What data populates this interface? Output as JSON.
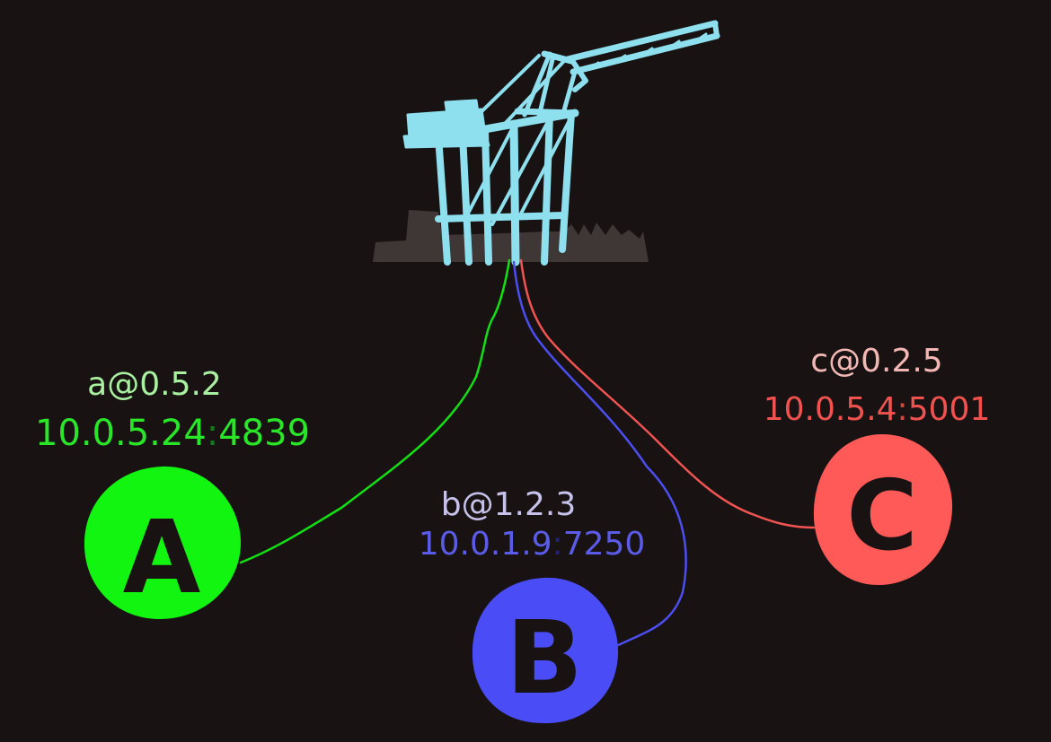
{
  "colors": {
    "background": "#181212",
    "crane": "#8ee0ee",
    "ground": "#3f3636",
    "node_a": "#11f511",
    "node_b": "#4a4cf6",
    "node_c": "#ff5a58",
    "letter": "#181212"
  },
  "hub": {
    "icon": "port-crane-icon"
  },
  "nodes": {
    "a": {
      "letter": "A",
      "name": "a@0.5.2",
      "ip": "10.0.5.24",
      "sep": ":",
      "port": "4839",
      "name_color": "#a9f0a0",
      "addr_color": "#29e629",
      "sep_color": "#0f7a1e"
    },
    "b": {
      "letter": "B",
      "name": "b@1.2.3",
      "ip": "10.0.1.9",
      "sep": ":",
      "port": "7250",
      "name_color": "#c7c2ea",
      "addr_color": "#5a5ce8",
      "sep_color": "#24237a"
    },
    "c": {
      "letter": "C",
      "name": "c@0.2.5",
      "ip": "10.0.5.4",
      "sep": ":",
      "port": "5001",
      "name_color": "#f2b7b5",
      "addr_color": "#f2524f",
      "sep_color": "#e0443f"
    }
  }
}
